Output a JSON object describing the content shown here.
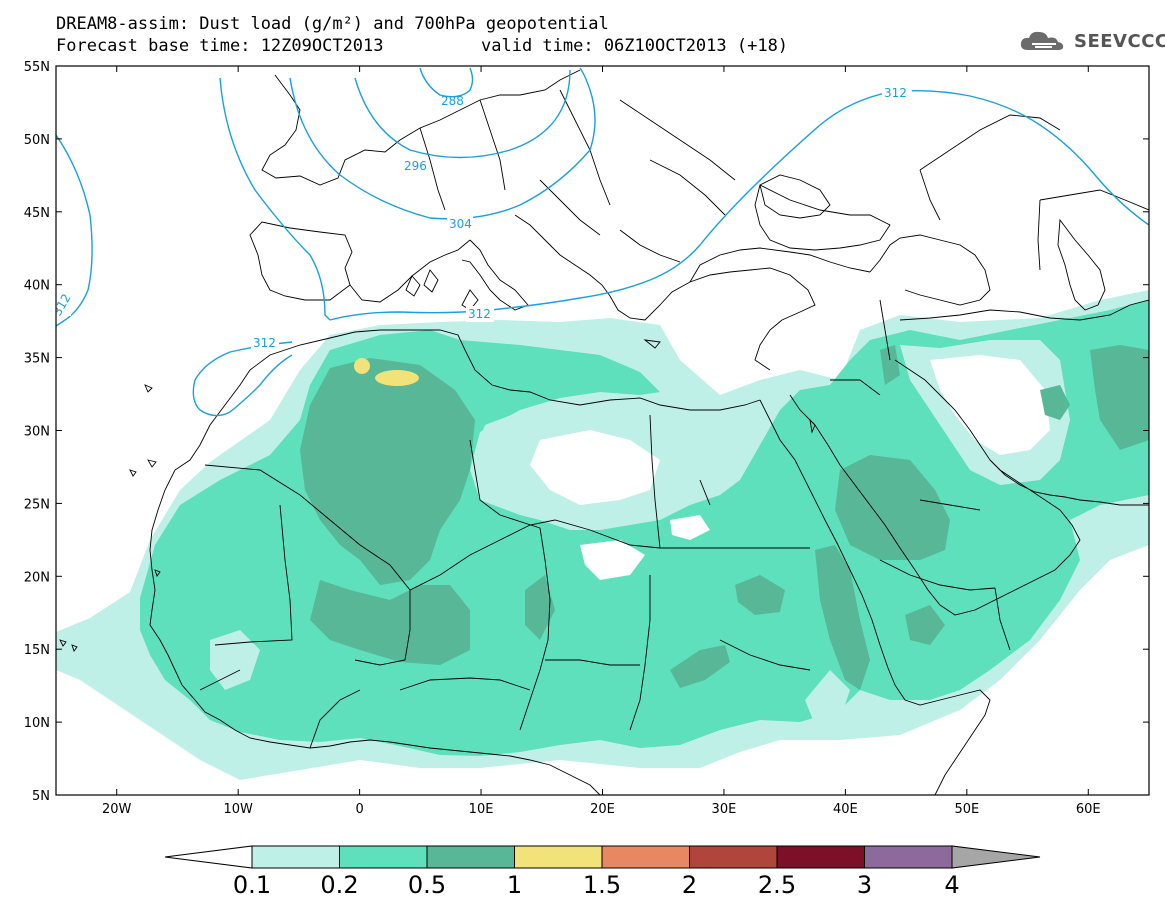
{
  "header": {
    "title_line1": "DREAM8-assim: Dust load (g/m²) and 700hPa geopotential",
    "title_line2": "Forecast base time: 12Z09OCT2013",
    "valid_time": "valid time: 06Z10OCT2013 (+18)",
    "logo_text": "SEEVCCC"
  },
  "axes": {
    "lat_labels": [
      "55N",
      "50N",
      "45N",
      "40N",
      "35N",
      "30N",
      "25N",
      "20N",
      "15N",
      "10N",
      "5N"
    ],
    "lon_labels": [
      "20W",
      "10W",
      "0",
      "10E",
      "20E",
      "30E",
      "40E",
      "50E",
      "60E"
    ]
  },
  "contours": {
    "labels": [
      "312",
      "288",
      "296",
      "304",
      "312",
      "312",
      "312"
    ],
    "color": "#1a9fdf"
  },
  "colorbar": {
    "levels": [
      "0.1",
      "0.2",
      "0.5",
      "1",
      "1.5",
      "2",
      "2.5",
      "3",
      "4"
    ],
    "colors": [
      "#bff0e8",
      "#5de0bb",
      "#58b796",
      "#f2e27a",
      "#e88862",
      "#b0453b",
      "#7d0f29",
      "#8c6b9c",
      "#a6a6a6"
    ],
    "under_color": "#ffffff",
    "over_color": "#a6a6a6"
  },
  "legend_colors": {
    "dust_0_1": "#bff0e8",
    "dust_0_2": "#5de0bb",
    "dust_0_5": "#58b796",
    "dust_1": "#f2e27a",
    "geopotential": "#1a9fdf",
    "coast": "#000000"
  }
}
